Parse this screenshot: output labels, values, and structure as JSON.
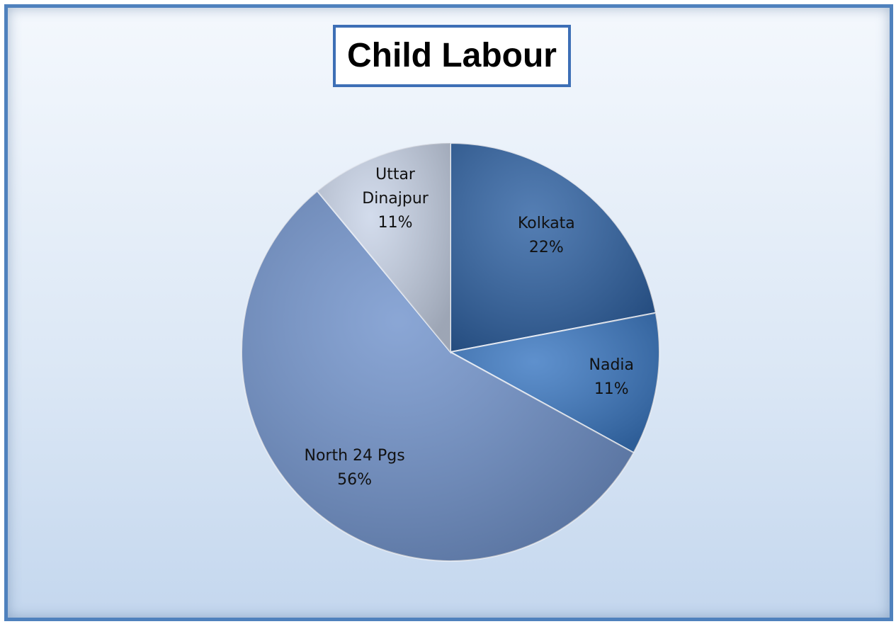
{
  "chart_data": {
    "type": "pie",
    "title": "Child Labour",
    "categories": [
      "Kolkata",
      "Nadia",
      "North 24 Pgs",
      "Uttar Dinajpur"
    ],
    "values": [
      22,
      11,
      56,
      11
    ],
    "value_labels": [
      "22%",
      "11%",
      "56%",
      "11%"
    ],
    "colors": [
      "#2f62a3",
      "#3b78c2",
      "#7193cc",
      "#c9d4e8"
    ]
  }
}
